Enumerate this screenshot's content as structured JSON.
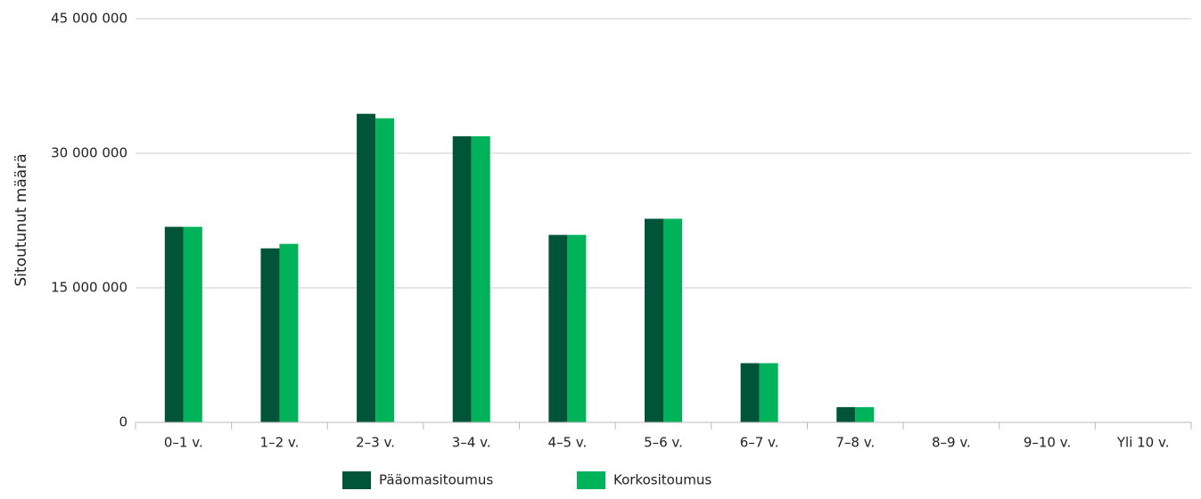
{
  "chart_data": {
    "type": "bar",
    "ylabel": "Sitoutunut määrä",
    "ylim": [
      0,
      45000000
    ],
    "yticks": [
      0,
      15000000,
      30000000,
      45000000
    ],
    "ytick_labels": [
      "0",
      "15 000 000",
      "30 000 000",
      "45 000 000"
    ],
    "categories": [
      "0–1 v.",
      "1–2 v.",
      "2–3 v.",
      "3–4 v.",
      "4–5 v.",
      "5–6 v.",
      "6–7 v.",
      "7–8 v.",
      "8–9 v.",
      "9–10 v.",
      "Yli 10 v."
    ],
    "series": [
      {
        "name": "Pääomasitoumus",
        "color": "#005538",
        "values": [
          21800000,
          19400000,
          34400000,
          31900000,
          20900000,
          22700000,
          6600000,
          1700000,
          0,
          0,
          0
        ]
      },
      {
        "name": "Korkositoumus",
        "color": "#00b259",
        "values": [
          21800000,
          19900000,
          33900000,
          31900000,
          20900000,
          22700000,
          6600000,
          1700000,
          0,
          0,
          0
        ]
      }
    ],
    "grid": true,
    "legend_position": "bottom"
  }
}
